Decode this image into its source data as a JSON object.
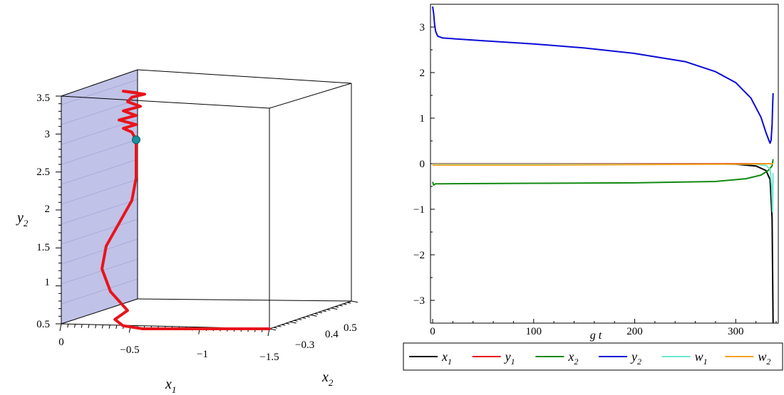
{
  "chart_data": [
    {
      "type": "line3d",
      "xlabel": "x",
      "xlabel_sub": "1",
      "ylabel": "x",
      "ylabel_sub": "2",
      "zlabel": "y",
      "zlabel_sub": "2",
      "x1_ticks": [
        "0",
        "−0.5",
        "−1",
        "−1.5"
      ],
      "x2_ticks": [
        "−0.3",
        "0.4",
        "0.5"
      ],
      "z_ticks": [
        "0.5",
        "1",
        "1.5",
        "2",
        "2.5",
        "3",
        "3.5"
      ],
      "zlim": [
        0.5,
        3.5
      ],
      "curve": {
        "color": "#e8141b",
        "points": [
          [
            -1.5,
            0.4
          ],
          [
            -1.2,
            0.41
          ],
          [
            -0.9,
            0.42
          ],
          [
            -0.7,
            0.45
          ],
          [
            -0.6,
            0.5
          ],
          [
            -0.52,
            0.6
          ],
          [
            -0.48,
            0.75
          ],
          [
            -0.44,
            1.0
          ],
          [
            -0.42,
            1.3
          ],
          [
            -0.43,
            1.6
          ],
          [
            -0.46,
            1.9
          ],
          [
            -0.49,
            2.2
          ],
          [
            -0.5,
            2.5
          ],
          [
            -0.5,
            2.75
          ],
          [
            -0.5,
            3.0
          ],
          [
            -0.49,
            3.1
          ],
          [
            -0.47,
            3.15
          ],
          [
            -0.5,
            3.2
          ],
          [
            -0.46,
            3.26
          ],
          [
            -0.5,
            3.32
          ],
          [
            -0.47,
            3.38
          ],
          [
            -0.51,
            3.44
          ],
          [
            -0.48,
            3.5
          ],
          [
            -0.49,
            3.56
          ],
          [
            -0.52,
            3.6
          ],
          [
            -0.47,
            3.64
          ],
          [
            -0.5,
            3.62
          ]
        ]
      },
      "marker": {
        "x1": -0.5,
        "y2": 3.0,
        "color": "#1e8f9e"
      },
      "plane_color": "#8e8fd4"
    },
    {
      "type": "line",
      "xlabel": "g t",
      "xlim": [
        0,
        340
      ],
      "ylim": [
        -3.5,
        3.5
      ],
      "x_ticks": [
        0,
        100,
        200,
        300
      ],
      "y_ticks": [
        -3,
        -2,
        -1,
        0,
        1,
        2,
        3
      ],
      "series": [
        {
          "name": "x",
          "sub": "1",
          "color": "#000000",
          "points": [
            [
              0,
              0
            ],
            [
              100,
              -0.001
            ],
            [
              200,
              -0.002
            ],
            [
              280,
              -0.005
            ],
            [
              300,
              -0.012
            ],
            [
              320,
              -0.05
            ],
            [
              330,
              -0.15
            ],
            [
              334,
              -0.35
            ],
            [
              336,
              -1.2
            ],
            [
              337,
              -3.5
            ]
          ]
        },
        {
          "name": "y",
          "sub": "1",
          "color": "#e8141b",
          "points": [
            [
              0,
              0
            ],
            [
              337,
              0
            ]
          ]
        },
        {
          "name": "x",
          "sub": "2",
          "color": "#118a11",
          "points": [
            [
              0,
              -0.4
            ],
            [
              1,
              -0.47
            ],
            [
              3,
              -0.44
            ],
            [
              10,
              -0.44
            ],
            [
              100,
              -0.43
            ],
            [
              200,
              -0.42
            ],
            [
              280,
              -0.39
            ],
            [
              310,
              -0.33
            ],
            [
              325,
              -0.25
            ],
            [
              332,
              -0.15
            ],
            [
              336,
              -0.05
            ],
            [
              337,
              0.1
            ]
          ]
        },
        {
          "name": "y",
          "sub": "2",
          "color": "#0a0ad6",
          "points": [
            [
              0,
              3.45
            ],
            [
              1,
              3.3
            ],
            [
              2,
              3.05
            ],
            [
              3,
              2.9
            ],
            [
              5,
              2.8
            ],
            [
              10,
              2.76
            ],
            [
              50,
              2.7
            ],
            [
              100,
              2.63
            ],
            [
              150,
              2.54
            ],
            [
              200,
              2.42
            ],
            [
              250,
              2.24
            ],
            [
              280,
              2.02
            ],
            [
              300,
              1.78
            ],
            [
              315,
              1.44
            ],
            [
              325,
              1.02
            ],
            [
              330,
              0.68
            ],
            [
              333,
              0.5
            ],
            [
              334,
              0.45
            ],
            [
              335,
              0.52
            ],
            [
              336,
              0.85
            ],
            [
              336.5,
              1.25
            ],
            [
              337,
              1.55
            ]
          ]
        },
        {
          "name": "w",
          "sub": "1",
          "color": "#6ee8cf",
          "points": [
            [
              0,
              -0.01
            ],
            [
              320,
              -0.01
            ],
            [
              330,
              -0.04
            ],
            [
              334,
              -0.12
            ],
            [
              335.5,
              -0.5
            ],
            [
              336.5,
              -1.05
            ],
            [
              337,
              -0.2
            ]
          ]
        },
        {
          "name": "w",
          "sub": "2",
          "color": "#f2a21e",
          "points": [
            [
              0,
              -0.03
            ],
            [
              100,
              -0.03
            ],
            [
              200,
              -0.02
            ],
            [
              300,
              -0.01
            ],
            [
              337,
              0
            ]
          ]
        }
      ]
    }
  ]
}
